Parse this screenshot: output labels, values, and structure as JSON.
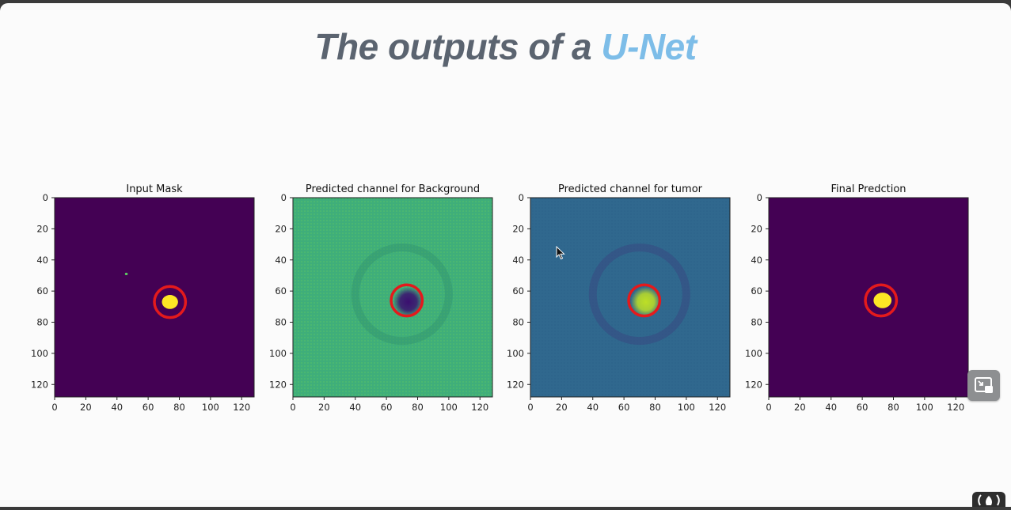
{
  "slide": {
    "title_main": "The outputs of a ",
    "title_accent": "U-Net",
    "accent_color": "#7dbde8",
    "title_color": "#5b6470"
  },
  "chart_data": [
    {
      "type": "heatmap",
      "title": "Input Mask",
      "xlim": [
        0,
        128
      ],
      "ylim": [
        0,
        128
      ],
      "xticks": [
        0,
        20,
        40,
        60,
        80,
        100,
        120
      ],
      "yticks": [
        0,
        20,
        40,
        60,
        80,
        100,
        120
      ],
      "y_inverted": true,
      "colormap": "viridis",
      "background_color": "#440154",
      "blobs": [
        {
          "x": 74,
          "y": 67,
          "r": 4.5,
          "color": "#fde725"
        },
        {
          "x": 46,
          "y": 49,
          "r": 0.8,
          "color": "#5ec962"
        }
      ],
      "annotation_circle": {
        "x": 74,
        "y": 67,
        "r": 10,
        "color": "#e41a1c"
      }
    },
    {
      "type": "heatmap",
      "title": "Predicted channel for Background",
      "xlim": [
        0,
        128
      ],
      "ylim": [
        0,
        128
      ],
      "xticks": [
        0,
        20,
        40,
        60,
        80,
        100,
        120
      ],
      "yticks": [
        0,
        20,
        40,
        60,
        80,
        100,
        120
      ],
      "y_inverted": true,
      "colormap": "viridis",
      "background_color": "#3fae7a",
      "blobs": [
        {
          "x": 74,
          "y": 67,
          "r": 7,
          "color": "#3b0f70"
        }
      ],
      "annotation_circle": {
        "x": 73,
        "y": 66,
        "r": 10,
        "color": "#e41a1c"
      }
    },
    {
      "type": "heatmap",
      "title": "Predicted channel for tumor",
      "xlim": [
        0,
        128
      ],
      "ylim": [
        0,
        128
      ],
      "xticks": [
        0,
        20,
        40,
        60,
        80,
        100,
        120
      ],
      "yticks": [
        0,
        20,
        40,
        60,
        80,
        100,
        120
      ],
      "y_inverted": true,
      "colormap": "viridis",
      "background_color": "#30688e",
      "blobs": [
        {
          "x": 74,
          "y": 67,
          "r": 7,
          "color": "#bddf26"
        }
      ],
      "annotation_circle": {
        "x": 73,
        "y": 66,
        "r": 10,
        "color": "#e41a1c"
      }
    },
    {
      "type": "heatmap",
      "title": "Final Predction",
      "xlim": [
        0,
        128
      ],
      "ylim": [
        0,
        128
      ],
      "xticks": [
        0,
        20,
        40,
        60,
        80,
        100,
        120
      ],
      "yticks": [
        0,
        20,
        40,
        60,
        80,
        100,
        120
      ],
      "y_inverted": true,
      "colormap": "viridis",
      "background_color": "#440154",
      "blobs": [
        {
          "x": 73,
          "y": 66,
          "r": 5,
          "color": "#fde725"
        }
      ],
      "annotation_circle": {
        "x": 72,
        "y": 66,
        "r": 10,
        "color": "#e41a1c"
      }
    }
  ],
  "controls": {
    "fab_icon": "picture-in-picture-icon",
    "cursor_icon": "mouse-pointer-icon",
    "logo_icon": "brand-logo-icon"
  }
}
